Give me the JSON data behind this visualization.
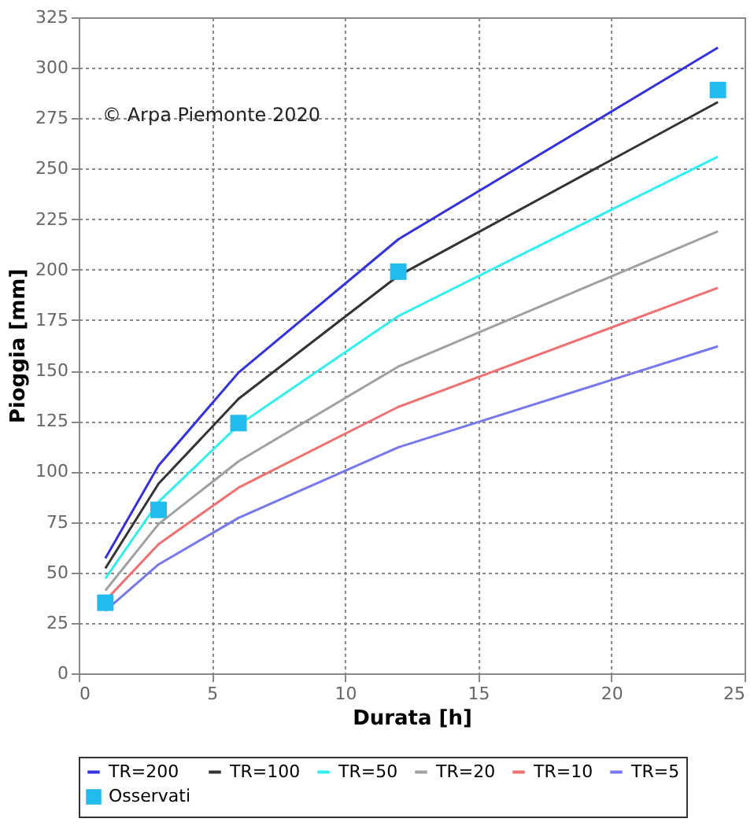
{
  "chart_data": {
    "type": "line",
    "xlabel": "Durata [h]",
    "ylabel": "Pioggia [mm]",
    "x": [
      1,
      3,
      6,
      12,
      24
    ],
    "series": [
      {
        "name": "TR=200",
        "color": "#3333dd",
        "values": [
          57,
          103,
          149,
          215,
          310
        ]
      },
      {
        "name": "TR=100",
        "color": "#333333",
        "values": [
          52,
          94,
          136,
          197,
          283
        ]
      },
      {
        "name": "TR=50",
        "color": "#33eeee",
        "values": [
          47,
          85,
          123,
          177,
          256
        ]
      },
      {
        "name": "TR=20",
        "color": "#a0a0a0",
        "values": [
          41,
          74,
          105,
          152,
          219
        ]
      },
      {
        "name": "TR=10",
        "color": "#f07070",
        "values": [
          36,
          64,
          92,
          132,
          191
        ]
      },
      {
        "name": "TR=5",
        "color": "#7777ee",
        "values": [
          31,
          54,
          77,
          112,
          162
        ]
      },
      {
        "name": "Osservati",
        "type": "scatter",
        "marker": "square",
        "color": "#22bbee",
        "values": [
          35,
          81,
          124,
          199,
          289
        ]
      }
    ],
    "xlim": [
      0,
      25
    ],
    "xticks": [
      0,
      5,
      10,
      15,
      20,
      25
    ],
    "ylim": [
      0,
      325
    ],
    "yticks": [
      0,
      25,
      50,
      75,
      100,
      125,
      150,
      175,
      200,
      225,
      250,
      275,
      300,
      325
    ],
    "grid": true,
    "legend": "bottom",
    "line_style": "solid",
    "annotations": [
      "© Arpa Piemonte 2020"
    ]
  }
}
